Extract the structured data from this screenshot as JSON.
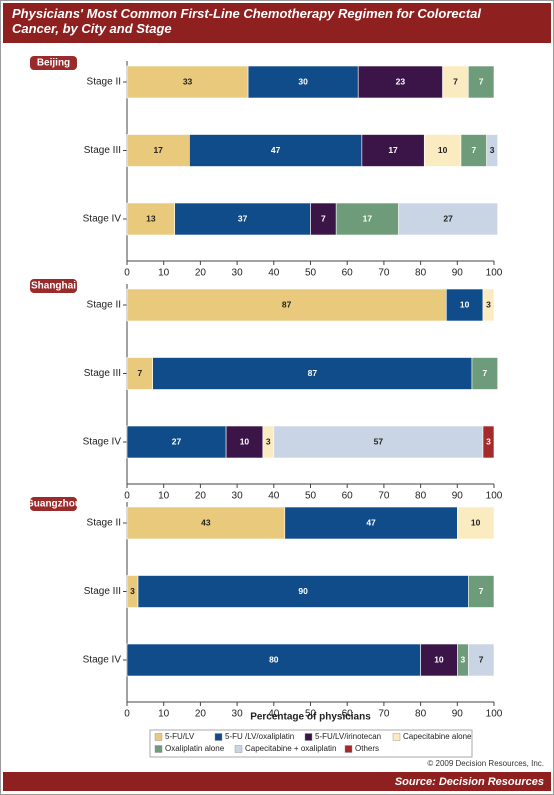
{
  "chart_data": {
    "type": "bar",
    "orientation": "horizontal",
    "stacked": true,
    "title": "Physicians' Most Common First-Line Chemotherapy Regimen for Colorectal Cancer, by City and Stage",
    "x_label": "Percentage of physicians",
    "xlim": [
      0,
      100
    ],
    "xticks": [
      0,
      10,
      20,
      30,
      40,
      50,
      60,
      70,
      80,
      90,
      100
    ],
    "panels": [
      "Beijing",
      "Shanghai",
      "Guangzhou"
    ],
    "categories": [
      "Stage II",
      "Stage III",
      "Stage IV"
    ],
    "series": [
      {
        "name": "5-FU/LV",
        "color": "#e9ca7c",
        "values": [
          [
            33,
            17,
            13
          ],
          [
            87,
            7,
            null
          ],
          [
            43,
            3,
            null
          ]
        ]
      },
      {
        "name": "5-FU /LV/oxaliplatin",
        "color": "#0f4c89",
        "values": [
          [
            30,
            47,
            37
          ],
          [
            10,
            87,
            27
          ],
          [
            47,
            90,
            80
          ]
        ]
      },
      {
        "name": "5-FU/LV/irinotecan",
        "color": "#3b1548",
        "values": [
          [
            23,
            17,
            7
          ],
          [
            null,
            null,
            10
          ],
          [
            null,
            null,
            10
          ]
        ]
      },
      {
        "name": "Capecitabine alone",
        "color": "#fbebc0",
        "values": [
          [
            7,
            10,
            null
          ],
          [
            3,
            null,
            3
          ],
          [
            10,
            null,
            null
          ]
        ]
      },
      {
        "name": "Oxaliplatin alone",
        "color": "#6e9b79",
        "values": [
          [
            7,
            7,
            17
          ],
          [
            null,
            7,
            null
          ],
          [
            null,
            7,
            3
          ]
        ]
      },
      {
        "name": "Capecitabine + oxaliplatin",
        "color": "#c9d4e4",
        "values": [
          [
            null,
            3,
            27
          ],
          [
            null,
            null,
            57
          ],
          [
            null,
            null,
            7
          ]
        ]
      },
      {
        "name": "Others",
        "color": "#a52b2b",
        "values": [
          [
            null,
            null,
            null
          ],
          [
            null,
            null,
            3
          ],
          [
            null,
            null,
            null
          ]
        ]
      }
    ],
    "copyright": "© 2009 Decision Resources, Inc.",
    "source": "Source: Decision Resources"
  }
}
